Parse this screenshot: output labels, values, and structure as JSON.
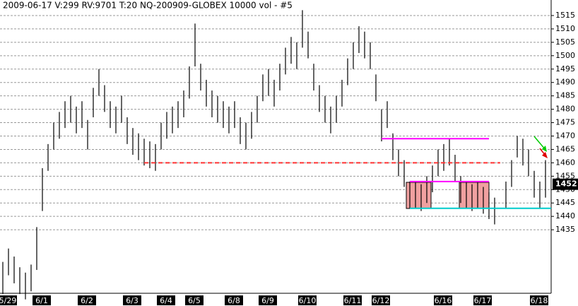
{
  "chart_data": {
    "type": "ohlc",
    "title": "2009-06-17  V:299  RV:9701  T:20  NQ-200909-GLOBEX  10000 vol - #5",
    "categories": [
      null,
      "5/29",
      null,
      null,
      null,
      null,
      null,
      "6/1",
      null,
      null,
      null,
      null,
      null,
      null,
      null,
      "6/2",
      null,
      null,
      null,
      null,
      null,
      null,
      null,
      "6/3",
      null,
      null,
      null,
      null,
      null,
      "6/4",
      null,
      null,
      null,
      null,
      "6/5",
      null,
      null,
      null,
      null,
      null,
      null,
      "6/8",
      null,
      null,
      null,
      null,
      null,
      "6/9",
      null,
      null,
      null,
      null,
      null,
      null,
      "6/10",
      null,
      null,
      null,
      null,
      null,
      null,
      null,
      "6/11",
      null,
      null,
      null,
      null,
      "6/12",
      null,
      null,
      null,
      null,
      null,
      null,
      null,
      null,
      null,
      null,
      "6/16",
      null,
      null,
      null,
      null,
      null,
      null,
      "6/17",
      null,
      null,
      null,
      null,
      null,
      null,
      null,
      null,
      null,
      "6/18",
      null
    ],
    "highs": [
      1423,
      1428,
      1425,
      1421,
      1419,
      1422,
      1436,
      1458,
      1467,
      1475,
      1479,
      1483,
      1485,
      1481,
      1483,
      1476,
      1488,
      1495,
      1489,
      1483,
      1481,
      1485,
      1477,
      1473,
      1471,
      1469,
      1468,
      1467,
      1475,
      1479,
      1481,
      1483,
      1487,
      1496,
      1512,
      1497,
      1491,
      1487,
      1485,
      1483,
      1481,
      1483,
      1477,
      1475,
      1479,
      1485,
      1493,
      1495,
      1491,
      1497,
      1503,
      1507,
      1505,
      1517,
      1509,
      1497,
      1489,
      1485,
      1481,
      1485,
      1491,
      1499,
      1505,
      1511,
      1509,
      1505,
      1493,
      1480,
      1483,
      1471,
      1465,
      1461,
      1453,
      1453,
      1452,
      1455,
      1459,
      1465,
      1467,
      1469,
      1463,
      1455,
      1453,
      1452,
      1453,
      1451,
      1449,
      1447,
      null,
      1453,
      1461,
      1470,
      1469,
      1465,
      1457,
      1453,
      1461
    ],
    "lows": [
      1411,
      1418,
      1415,
      1411,
      1409,
      1412,
      1420,
      1442,
      1457,
      1465,
      1469,
      1473,
      1475,
      1471,
      1473,
      1465,
      1477,
      1485,
      1479,
      1473,
      1471,
      1475,
      1467,
      1463,
      1461,
      1459,
      1458,
      1457,
      1465,
      1469,
      1471,
      1473,
      1477,
      1484,
      1496,
      1487,
      1481,
      1477,
      1475,
      1473,
      1471,
      1473,
      1467,
      1465,
      1469,
      1475,
      1483,
      1485,
      1481,
      1487,
      1493,
      1497,
      1495,
      1503,
      1499,
      1487,
      1479,
      1475,
      1471,
      1475,
      1481,
      1489,
      1495,
      1501,
      1499,
      1495,
      1483,
      1468,
      1473,
      1461,
      1455,
      1451,
      1443,
      1443,
      1442,
      1445,
      1449,
      1455,
      1457,
      1459,
      1453,
      1445,
      1443,
      1442,
      1443,
      1441,
      1439,
      1437,
      null,
      1443,
      1451,
      1462,
      1459,
      1455,
      1447,
      1443,
      1447
    ],
    "color": "#000000",
    "ylim": [
      1412.6,
      1520.8
    ],
    "yticks": [
      1435,
      1440,
      1445,
      1450,
      1455,
      1460,
      1465,
      1470,
      1475,
      1480,
      1485,
      1490,
      1495,
      1500,
      1505,
      1510,
      1515
    ],
    "grid": true,
    "levels": [
      {
        "value": 1469,
        "color": "#ff00ff",
        "dash": false
      },
      {
        "value": 1460,
        "color": "#ff3333",
        "dash": true
      },
      {
        "value": 1453,
        "color": "#ff00ff",
        "dash": false
      },
      {
        "value": 1443,
        "color": "#00cccc",
        "dash": false
      }
    ],
    "last": 1452
  }
}
